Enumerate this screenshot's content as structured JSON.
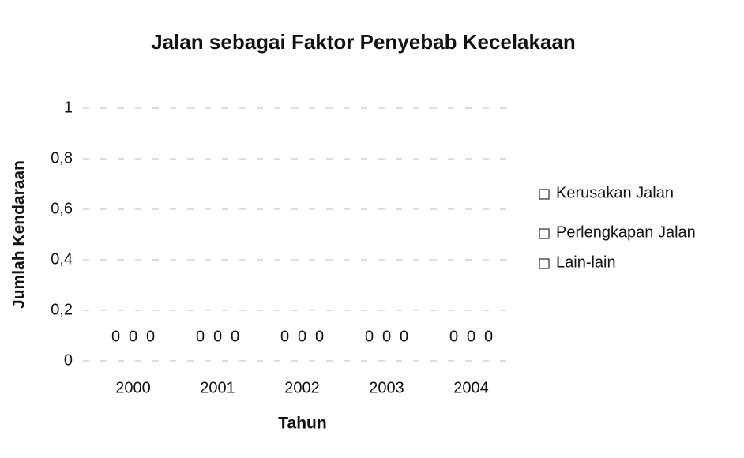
{
  "chart_data": {
    "type": "bar",
    "title": "Jalan sebagai Faktor Penyebab Kecelakaan",
    "x_label": "Tahun",
    "y_label": "Jumlah Kendaraan",
    "categories": [
      "2000",
      "2001",
      "2002",
      "2003",
      "2004"
    ],
    "series": [
      {
        "name": "Kerusakan Jalan",
        "color": "#ffffff",
        "values": [
          0,
          0,
          0,
          0,
          0
        ]
      },
      {
        "name": "Perlengkapan Jalan",
        "color": "#ffffff",
        "values": [
          0,
          0,
          0,
          0,
          0
        ]
      },
      {
        "name": "Lain-lain",
        "color": "#ffffff",
        "values": [
          0,
          0,
          0,
          0,
          0
        ]
      }
    ],
    "ylim": [
      0,
      1
    ],
    "yticks": [
      0,
      {
        "value": 0.2,
        "label": "0,2"
      },
      {
        "value": 0.4,
        "label": "0,4"
      },
      {
        "value": 0.6,
        "label": "0,6"
      },
      {
        "value": 0.8,
        "label": "0,8"
      },
      1
    ],
    "grid": true,
    "legend": "right"
  }
}
